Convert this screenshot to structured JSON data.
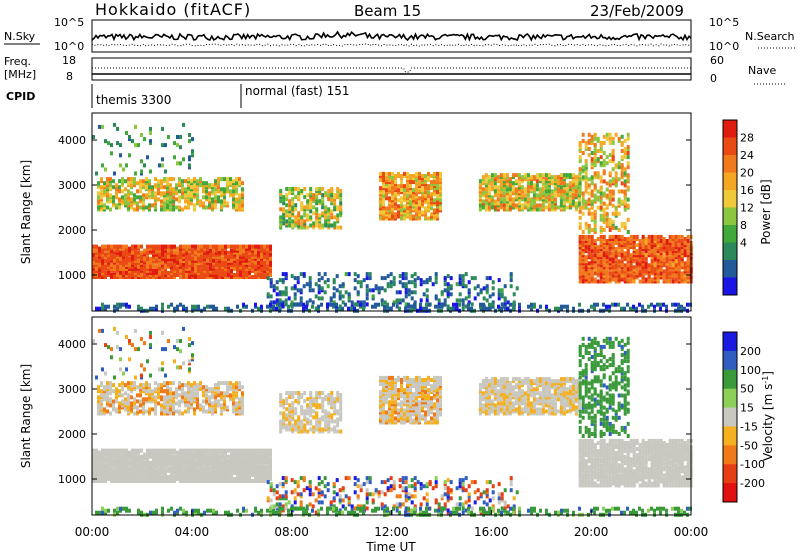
{
  "header": {
    "station": "Hokkaido (fitACF)",
    "beam": "Beam 15",
    "date": "23/Feb/2009"
  },
  "strip_labels": {
    "nsky": "N.Sky",
    "freq_line1": "Freq.",
    "freq_line2": "[MHz]",
    "cpid": "CPID",
    "nsearch": "N.Search",
    "nave": "Nave"
  },
  "strip_ticks": {
    "nsky_left": [
      "10^5",
      "10^0"
    ],
    "nsky_right": [
      "10^5",
      "10^0"
    ],
    "freq_left": [
      "18",
      "8"
    ],
    "nave_right": [
      "60",
      "0"
    ]
  },
  "cpid_segments": [
    {
      "label": "themis 3300",
      "start_hour": 0
    },
    {
      "label": "normal (fast) 151",
      "start_hour": 6
    }
  ],
  "chart_data": [
    {
      "type": "heatmap",
      "name": "power",
      "ylabel": "Slant Range [km]",
      "yticks": [
        "1000",
        "2000",
        "3000",
        "4000"
      ],
      "ylim": [
        200,
        4600
      ],
      "xlim": [
        0,
        24
      ],
      "colorbar": {
        "label": "Power [dB]",
        "ticks": [
          "4",
          "8",
          "12",
          "16",
          "20",
          "24",
          "28"
        ],
        "colors": [
          "#1a14e6",
          "#225a9a",
          "#2c8a5a",
          "#41a83a",
          "#8cc63e",
          "#f0c93a",
          "#f5a623",
          "#f07a1c",
          "#ea4a14",
          "#e01b10"
        ]
      }
    },
    {
      "type": "heatmap",
      "name": "velocity",
      "ylabel": "Slant Range [km]",
      "yticks": [
        "1000",
        "2000",
        "3000",
        "4000"
      ],
      "ylim": [
        200,
        4600
      ],
      "xlim": [
        0,
        24
      ],
      "xlabel": "Time UT",
      "xticks": [
        "00:00",
        "04:00",
        "08:00",
        "12:00",
        "16:00",
        "20:00",
        "00:00"
      ],
      "colorbar": {
        "label": "Velocity [m s",
        "label_sup": "-1",
        "label_end": "]",
        "ticks": [
          "200",
          "100",
          "50",
          "15",
          "-15",
          "-50",
          "-100",
          "-200"
        ],
        "colors": [
          "#1a1ae0",
          "#2f5ec0",
          "#3a9a3a",
          "#8cd05a",
          "#c8c8c0",
          "#f5b020",
          "#f07a18",
          "#e83e14",
          "#e00f10"
        ]
      }
    }
  ]
}
